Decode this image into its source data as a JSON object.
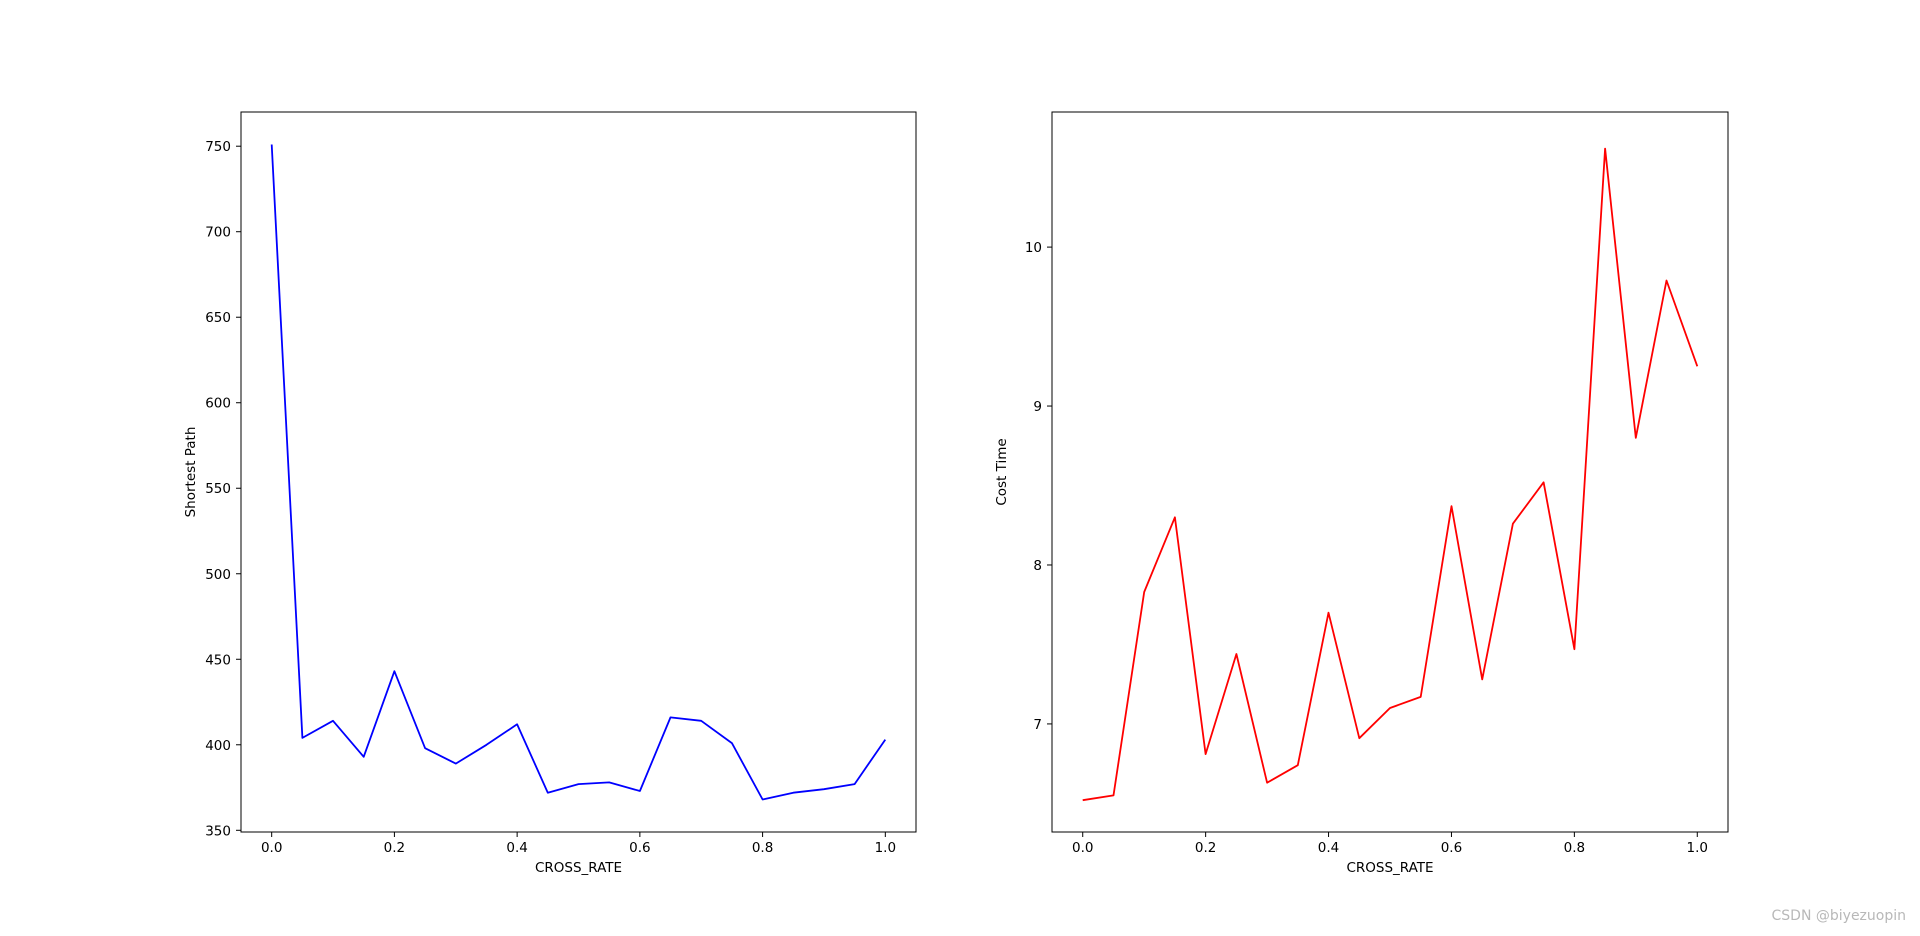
{
  "chart_data": [
    {
      "type": "line",
      "title": "",
      "xlabel": "CROSS_RATE",
      "ylabel": "Shortest Path",
      "xlim": [
        -0.05,
        1.05
      ],
      "ylim": [
        349,
        770
      ],
      "xticks": [
        0.0,
        0.2,
        0.4,
        0.6,
        0.8,
        1.0
      ],
      "xtick_labels": [
        "0.0",
        "0.2",
        "0.4",
        "0.6",
        "0.8",
        "1.0"
      ],
      "yticks": [
        350,
        400,
        450,
        500,
        550,
        600,
        650,
        700,
        750
      ],
      "ytick_labels": [
        "350",
        "400",
        "450",
        "500",
        "550",
        "600",
        "650",
        "700",
        "750"
      ],
      "grid": false,
      "color": "#0000ff",
      "x": [
        0.0,
        0.05,
        0.1,
        0.15,
        0.2,
        0.25,
        0.3,
        0.35,
        0.4,
        0.45,
        0.5,
        0.55,
        0.6,
        0.65,
        0.7,
        0.75,
        0.8,
        0.85,
        0.9,
        0.95,
        1.0
      ],
      "y": [
        751,
        404,
        414,
        393,
        443,
        398,
        389,
        400,
        412,
        372,
        377,
        378,
        373,
        416,
        414,
        401,
        368,
        372,
        374,
        377,
        403
      ]
    },
    {
      "type": "line",
      "title": "",
      "xlabel": "CROSS_RATE",
      "ylabel": "Cost Time",
      "xlim": [
        -0.05,
        1.05
      ],
      "ylim": [
        6.32,
        10.85
      ],
      "xticks": [
        0.0,
        0.2,
        0.4,
        0.6,
        0.8,
        1.0
      ],
      "xtick_labels": [
        "0.0",
        "0.2",
        "0.4",
        "0.6",
        "0.8",
        "1.0"
      ],
      "yticks": [
        7,
        8,
        9,
        10
      ],
      "ytick_labels": [
        "7",
        "8",
        "9",
        "10"
      ],
      "grid": false,
      "color": "#ff0000",
      "x": [
        0.0,
        0.05,
        0.1,
        0.15,
        0.2,
        0.25,
        0.3,
        0.35,
        0.4,
        0.45,
        0.5,
        0.55,
        0.6,
        0.65,
        0.7,
        0.75,
        0.8,
        0.85,
        0.9,
        0.95,
        1.0
      ],
      "y": [
        6.52,
        6.55,
        7.83,
        8.3,
        6.81,
        7.44,
        6.63,
        6.74,
        7.7,
        6.91,
        7.1,
        7.17,
        8.37,
        7.28,
        8.26,
        8.52,
        7.47,
        10.62,
        8.8,
        9.79,
        9.25
      ]
    }
  ],
  "watermark": "CSDN @biyezuopin"
}
